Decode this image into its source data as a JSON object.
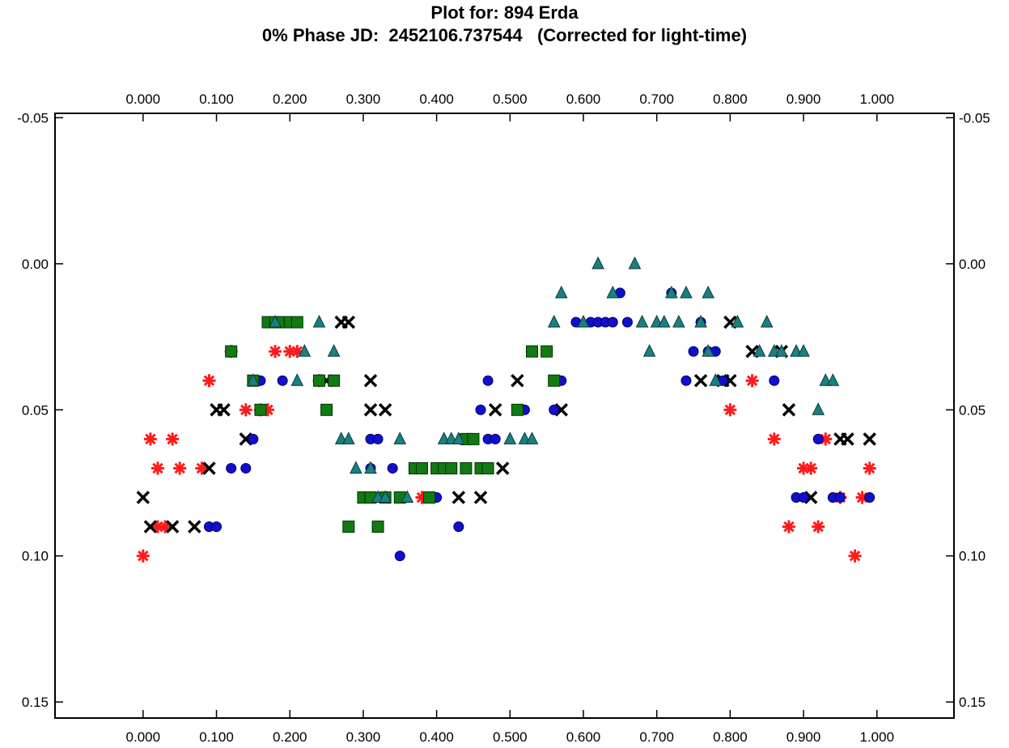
{
  "chart_data": {
    "type": "scatter",
    "title": "Plot for: 894 Erda",
    "subtitle": "0% Phase JD:  2452106.737544   (Corrected for light-time)",
    "xlabel": "",
    "ylabel": "",
    "xlim": [
      -0.12,
      1.105
    ],
    "ylim": [
      -0.0515,
      0.1555
    ],
    "y_inverted": true,
    "grid": false,
    "x_ticks": [
      "0.000",
      "0.100",
      "0.200",
      "0.300",
      "0.400",
      "0.500",
      "0.600",
      "0.700",
      "0.800",
      "0.900",
      "1.000"
    ],
    "x_tick_values": [
      0,
      0.1,
      0.2,
      0.3,
      0.4,
      0.5,
      0.6,
      0.7,
      0.8,
      0.9,
      1.0
    ],
    "y_ticks": [
      "-0.05",
      "0.00",
      "0.05",
      "0.10",
      "0.15"
    ],
    "y_tick_values": [
      -0.05,
      0,
      0.05,
      0.1,
      0.15
    ],
    "series": [
      {
        "marker": "asterisk",
        "color": "#ff1a1a",
        "points": [
          [
            0.0,
            0.1
          ],
          [
            0.01,
            0.06
          ],
          [
            0.04,
            0.06
          ],
          [
            0.02,
            0.07
          ],
          [
            0.05,
            0.07
          ],
          [
            0.08,
            0.07
          ],
          [
            0.02,
            0.09
          ],
          [
            0.03,
            0.09
          ],
          [
            0.09,
            0.04
          ],
          [
            0.12,
            0.03
          ],
          [
            0.14,
            0.05
          ],
          [
            0.16,
            0.05
          ],
          [
            0.17,
            0.05
          ],
          [
            0.18,
            0.03
          ],
          [
            0.2,
            0.03
          ],
          [
            0.21,
            0.03
          ],
          [
            0.24,
            0.04
          ],
          [
            0.8,
            0.05
          ],
          [
            0.83,
            0.04
          ],
          [
            0.86,
            0.06
          ],
          [
            0.88,
            0.09
          ],
          [
            0.9,
            0.07
          ],
          [
            0.91,
            0.07
          ],
          [
            0.92,
            0.09
          ],
          [
            0.93,
            0.06
          ],
          [
            0.95,
            0.08
          ],
          [
            0.97,
            0.1
          ],
          [
            0.98,
            0.08
          ],
          [
            0.99,
            0.07
          ],
          [
            0.38,
            0.08
          ]
        ]
      },
      {
        "marker": "x",
        "color": "#000000",
        "points": [
          [
            0.0,
            0.08
          ],
          [
            0.01,
            0.09
          ],
          [
            0.04,
            0.09
          ],
          [
            0.07,
            0.09
          ],
          [
            0.09,
            0.07
          ],
          [
            0.1,
            0.05
          ],
          [
            0.11,
            0.05
          ],
          [
            0.14,
            0.06
          ],
          [
            0.25,
            0.04
          ],
          [
            0.27,
            0.02
          ],
          [
            0.28,
            0.02
          ],
          [
            0.31,
            0.04
          ],
          [
            0.31,
            0.05
          ],
          [
            0.33,
            0.05
          ],
          [
            0.43,
            0.08
          ],
          [
            0.46,
            0.08
          ],
          [
            0.48,
            0.05
          ],
          [
            0.49,
            0.07
          ],
          [
            0.51,
            0.04
          ],
          [
            0.57,
            0.05
          ],
          [
            0.76,
            0.04
          ],
          [
            0.79,
            0.04
          ],
          [
            0.8,
            0.04
          ],
          [
            0.8,
            0.02
          ],
          [
            0.83,
            0.03
          ],
          [
            0.87,
            0.03
          ],
          [
            0.88,
            0.05
          ],
          [
            0.91,
            0.08
          ],
          [
            0.95,
            0.06
          ],
          [
            0.96,
            0.06
          ],
          [
            0.99,
            0.06
          ]
        ]
      },
      {
        "marker": "circle",
        "color": "#1010cc",
        "points": [
          [
            0.09,
            0.09
          ],
          [
            0.1,
            0.09
          ],
          [
            0.12,
            0.07
          ],
          [
            0.14,
            0.07
          ],
          [
            0.15,
            0.06
          ],
          [
            0.16,
            0.04
          ],
          [
            0.19,
            0.04
          ],
          [
            0.31,
            0.06
          ],
          [
            0.32,
            0.06
          ],
          [
            0.31,
            0.07
          ],
          [
            0.34,
            0.07
          ],
          [
            0.35,
            0.1
          ],
          [
            0.4,
            0.08
          ],
          [
            0.43,
            0.09
          ],
          [
            0.46,
            0.05
          ],
          [
            0.47,
            0.04
          ],
          [
            0.47,
            0.06
          ],
          [
            0.48,
            0.06
          ],
          [
            0.51,
            0.05
          ],
          [
            0.52,
            0.05
          ],
          [
            0.56,
            0.05
          ],
          [
            0.57,
            0.04
          ],
          [
            0.59,
            0.02
          ],
          [
            0.61,
            0.02
          ],
          [
            0.62,
            0.02
          ],
          [
            0.63,
            0.02
          ],
          [
            0.64,
            0.02
          ],
          [
            0.65,
            0.01
          ],
          [
            0.66,
            0.02
          ],
          [
            0.72,
            0.01
          ],
          [
            0.74,
            0.04
          ],
          [
            0.75,
            0.03
          ],
          [
            0.76,
            0.02
          ],
          [
            0.77,
            0.03
          ],
          [
            0.78,
            0.03
          ],
          [
            0.79,
            0.04
          ],
          [
            0.86,
            0.04
          ],
          [
            0.89,
            0.08
          ],
          [
            0.9,
            0.08
          ],
          [
            0.92,
            0.06
          ],
          [
            0.94,
            0.08
          ],
          [
            0.95,
            0.08
          ],
          [
            0.99,
            0.08
          ]
        ]
      },
      {
        "marker": "square",
        "color": "#127a12",
        "points": [
          [
            0.12,
            0.03
          ],
          [
            0.15,
            0.04
          ],
          [
            0.16,
            0.05
          ],
          [
            0.17,
            0.02
          ],
          [
            0.18,
            0.02
          ],
          [
            0.19,
            0.02
          ],
          [
            0.2,
            0.02
          ],
          [
            0.21,
            0.02
          ],
          [
            0.24,
            0.04
          ],
          [
            0.25,
            0.05
          ],
          [
            0.26,
            0.04
          ],
          [
            0.28,
            0.09
          ],
          [
            0.3,
            0.08
          ],
          [
            0.31,
            0.08
          ],
          [
            0.32,
            0.09
          ],
          [
            0.33,
            0.08
          ],
          [
            0.35,
            0.08
          ],
          [
            0.37,
            0.07
          ],
          [
            0.38,
            0.07
          ],
          [
            0.39,
            0.08
          ],
          [
            0.4,
            0.07
          ],
          [
            0.41,
            0.07
          ],
          [
            0.42,
            0.07
          ],
          [
            0.44,
            0.06
          ],
          [
            0.45,
            0.06
          ],
          [
            0.46,
            0.07
          ],
          [
            0.47,
            0.07
          ],
          [
            0.51,
            0.05
          ],
          [
            0.53,
            0.03
          ],
          [
            0.55,
            0.03
          ],
          [
            0.56,
            0.04
          ],
          [
            0.44,
            0.07
          ]
        ]
      },
      {
        "marker": "triangle",
        "color": "#1a8080",
        "points": [
          [
            0.15,
            0.04
          ],
          [
            0.18,
            0.02
          ],
          [
            0.21,
            0.04
          ],
          [
            0.22,
            0.03
          ],
          [
            0.24,
            0.02
          ],
          [
            0.26,
            0.03
          ],
          [
            0.27,
            0.06
          ],
          [
            0.28,
            0.06
          ],
          [
            0.29,
            0.07
          ],
          [
            0.31,
            0.07
          ],
          [
            0.32,
            0.08
          ],
          [
            0.33,
            0.08
          ],
          [
            0.35,
            0.06
          ],
          [
            0.36,
            0.08
          ],
          [
            0.41,
            0.06
          ],
          [
            0.42,
            0.06
          ],
          [
            0.43,
            0.06
          ],
          [
            0.5,
            0.06
          ],
          [
            0.52,
            0.06
          ],
          [
            0.53,
            0.06
          ],
          [
            0.56,
            0.02
          ],
          [
            0.57,
            0.01
          ],
          [
            0.6,
            0.02
          ],
          [
            0.62,
            0.0
          ],
          [
            0.64,
            0.01
          ],
          [
            0.67,
            0.0
          ],
          [
            0.68,
            0.02
          ],
          [
            0.69,
            0.03
          ],
          [
            0.7,
            0.02
          ],
          [
            0.71,
            0.02
          ],
          [
            0.72,
            0.01
          ],
          [
            0.73,
            0.02
          ],
          [
            0.74,
            0.01
          ],
          [
            0.77,
            0.01
          ],
          [
            0.76,
            0.02
          ],
          [
            0.77,
            0.03
          ],
          [
            0.78,
            0.04
          ],
          [
            0.81,
            0.02
          ],
          [
            0.84,
            0.03
          ],
          [
            0.85,
            0.02
          ],
          [
            0.86,
            0.03
          ],
          [
            0.87,
            0.03
          ],
          [
            0.89,
            0.03
          ],
          [
            0.9,
            0.03
          ],
          [
            0.93,
            0.04
          ],
          [
            0.94,
            0.04
          ],
          [
            0.92,
            0.05
          ]
        ]
      }
    ]
  }
}
